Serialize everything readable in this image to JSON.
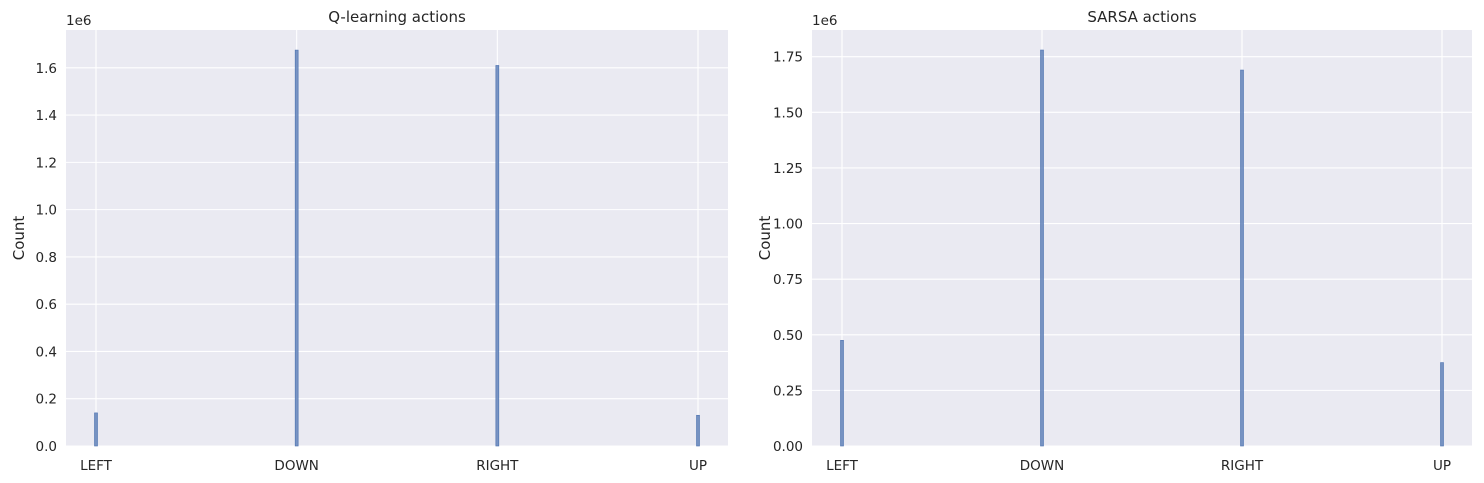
{
  "colors": {
    "bar": "#4c72b0",
    "plot_background": "#eaeaf2",
    "grid": "#ffffff",
    "text": "#262626"
  },
  "chart_data": [
    {
      "type": "bar",
      "title": "Q-learning actions",
      "xlabel": "",
      "ylabel": "Count",
      "offset_label": "1e6",
      "categories": [
        "LEFT",
        "DOWN",
        "RIGHT",
        "UP"
      ],
      "values": [
        140000,
        1675000,
        1610000,
        130000
      ],
      "ylim": [
        0,
        1760000
      ],
      "yticks": [
        0,
        200000,
        400000,
        600000,
        800000,
        1000000,
        1200000,
        1400000,
        1600000
      ],
      "ytick_labels": [
        "0.0",
        "0.2",
        "0.4",
        "0.6",
        "0.8",
        "1.0",
        "1.2",
        "1.4",
        "1.6"
      ],
      "grid": true
    },
    {
      "type": "bar",
      "title": "SARSA actions",
      "xlabel": "",
      "ylabel": "Count",
      "offset_label": "1e6",
      "categories": [
        "LEFT",
        "DOWN",
        "RIGHT",
        "UP"
      ],
      "values": [
        475000,
        1780000,
        1690000,
        375000
      ],
      "ylim": [
        0,
        1870000
      ],
      "yticks": [
        0,
        250000,
        500000,
        750000,
        1000000,
        1250000,
        1500000,
        1750000
      ],
      "ytick_labels": [
        "0.00",
        "0.25",
        "0.50",
        "0.75",
        "1.00",
        "1.25",
        "1.50",
        "1.75"
      ],
      "grid": true
    }
  ]
}
